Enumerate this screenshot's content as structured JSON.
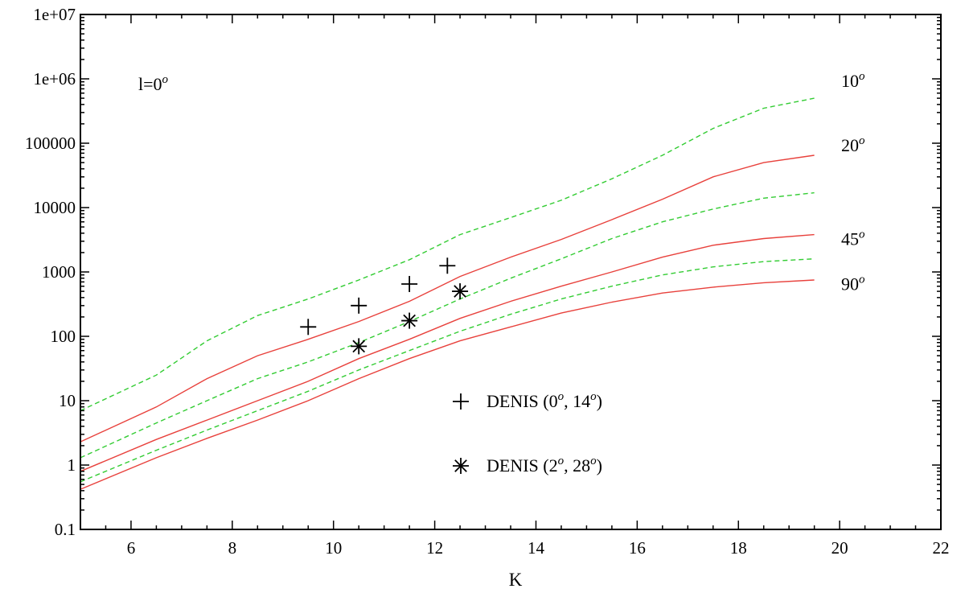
{
  "chart_data": {
    "type": "line",
    "xlabel": "K",
    "ylabel": "",
    "xlim": [
      5,
      22
    ],
    "ylim": [
      0.1,
      10000000
    ],
    "yscale": "log",
    "grid": false,
    "x_ticks": [
      6,
      8,
      10,
      12,
      14,
      16,
      18,
      20,
      22
    ],
    "x_tick_labels": [
      "6",
      "8",
      "10",
      "12",
      "14",
      "16",
      "18",
      "20",
      "22"
    ],
    "y_ticks": [
      0.1,
      1,
      10,
      100,
      1000,
      10000,
      100000,
      1000000,
      10000000
    ],
    "y_tick_labels": [
      "0.1",
      "1",
      "10",
      "100",
      "1000",
      "10000",
      "100000",
      "1e+06",
      "1e+07"
    ],
    "panel_label": {
      "base": "l=0",
      "sup": "o"
    },
    "series": [
      {
        "line_style": "dashed",
        "color": "#33cc33",
        "x": [
          5,
          6.5,
          7.5,
          8.5,
          9.5,
          10.5,
          11.5,
          12.5,
          13.5,
          14.5,
          15.5,
          16.5,
          17.5,
          18.5,
          19.5
        ],
        "y": [
          7,
          25,
          85,
          210,
          380,
          750,
          1550,
          3800,
          7000,
          13000,
          28000,
          65000,
          170000,
          350000,
          500000
        ]
      },
      {
        "line_style": "solid",
        "color": "#e8413c",
        "x": [
          5,
          6.5,
          7.5,
          8.5,
          9.5,
          10.5,
          11.5,
          12.5,
          13.5,
          14.5,
          15.5,
          16.5,
          17.5,
          18.5,
          19.5
        ],
        "y": [
          2.3,
          8,
          22,
          50,
          90,
          170,
          350,
          850,
          1700,
          3200,
          6500,
          13500,
          30000,
          50000,
          65000
        ]
      },
      {
        "line_style": "dashed",
        "color": "#33cc33",
        "x": [
          5,
          6.5,
          7.5,
          8.5,
          9.5,
          10.5,
          11.5,
          12.5,
          13.5,
          14.5,
          15.5,
          16.5,
          17.5,
          18.5,
          19.5
        ],
        "y": [
          1.3,
          4.5,
          10,
          22,
          40,
          80,
          170,
          380,
          800,
          1600,
          3300,
          6000,
          9500,
          14000,
          17000
        ]
      },
      {
        "line_style": "solid",
        "color": "#e8413c",
        "x": [
          5,
          6.5,
          7.5,
          8.5,
          9.5,
          10.5,
          11.5,
          12.5,
          13.5,
          14.5,
          15.5,
          16.5,
          17.5,
          18.5,
          19.5
        ],
        "y": [
          0.8,
          2.5,
          5,
          10,
          20,
          45,
          90,
          190,
          350,
          600,
          1000,
          1700,
          2600,
          3300,
          3800
        ]
      },
      {
        "line_style": "dashed",
        "color": "#33cc33",
        "x": [
          5,
          6.5,
          7.5,
          8.5,
          9.5,
          10.5,
          11.5,
          12.5,
          13.5,
          14.5,
          15.5,
          16.5,
          17.5,
          18.5,
          19.5
        ],
        "y": [
          0.55,
          1.7,
          3.5,
          7,
          14,
          30,
          60,
          120,
          220,
          380,
          600,
          900,
          1200,
          1450,
          1600
        ]
      },
      {
        "line_style": "solid",
        "color": "#e8413c",
        "x": [
          5,
          6.5,
          7.5,
          8.5,
          9.5,
          10.5,
          11.5,
          12.5,
          13.5,
          14.5,
          15.5,
          16.5,
          17.5,
          18.5,
          19.5
        ],
        "y": [
          0.42,
          1.3,
          2.6,
          5,
          10,
          22,
          45,
          85,
          140,
          230,
          340,
          470,
          580,
          680,
          750
        ]
      }
    ],
    "curve_labels": [
      {
        "base": "10",
        "sup": "o",
        "y": 1000000
      },
      {
        "base": "20",
        "sup": "o",
        "y": 100000
      },
      {
        "base": "45",
        "sup": "o",
        "y": 3500
      },
      {
        "base": "90",
        "sup": "o",
        "y": 700
      }
    ],
    "markers": [
      {
        "name": "DENIS (0o, 14o)",
        "symbol": "plus",
        "x": [
          9.5,
          10.5,
          11.5,
          12.25
        ],
        "y": [
          140,
          300,
          650,
          1250
        ]
      },
      {
        "name": "DENIS (2o, 28o)",
        "symbol": "star",
        "x": [
          10.5,
          11.5,
          12.5
        ],
        "y": [
          70,
          175,
          500
        ]
      }
    ],
    "legend": {
      "placement": "center",
      "entries": [
        {
          "symbol": "plus",
          "prefix": "DENIS (0",
          "mid": ", 14",
          "suffix": ")",
          "sup": "o"
        },
        {
          "symbol": "star",
          "prefix": "DENIS (2",
          "mid": ", 28",
          "suffix": ")",
          "sup": "o"
        }
      ]
    }
  }
}
